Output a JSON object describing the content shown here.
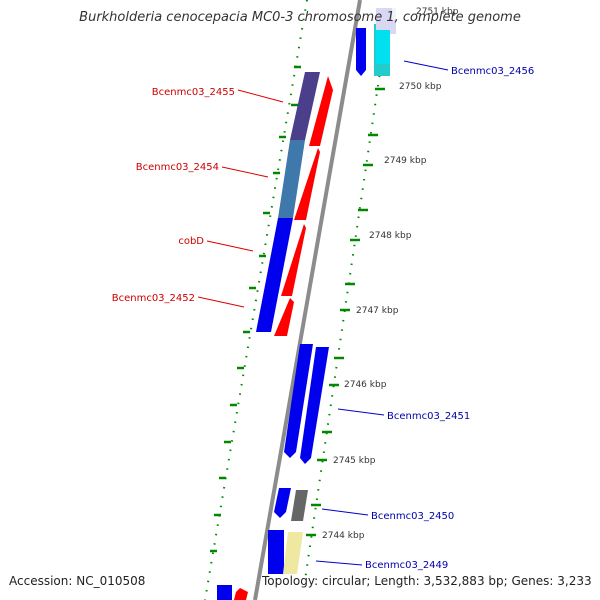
{
  "title": "Burkholderia cenocepacia MC0-3 chromosome 1, complete genome",
  "accession": "Accession: NC_010508",
  "topology": "Topology: circular; Length: 3,532,883 bp; Genes: 3,233",
  "colors": {
    "backbone": "#8c8c8c",
    "tick": "#008800",
    "ruler_text": "#333333",
    "label_left": "#cc0000",
    "label_right": "#0000aa",
    "leader_left": "#dd0000",
    "leader_right": "#0000cc",
    "blue": "#0000ee",
    "red": "#ff0000",
    "purple": "#4b3f8c",
    "steel": "#3f78aa",
    "cyan": "#22cccc",
    "gray": "#666666",
    "khaki": "#eee8a0"
  },
  "ruler": [
    "2751 kbp",
    "2750 kbp",
    "2749 kbp",
    "2748 kbp",
    "2747 kbp",
    "2746 kbp",
    "2745 kbp",
    "2744 kbp"
  ],
  "gene_labels_left": [
    "Bcenmc03_2455",
    "Bcenmc03_2454",
    "cobD",
    "Bcenmc03_2452"
  ],
  "gene_labels_right": [
    "Bcenmc03_2456",
    "Bcenmc03_2451",
    "Bcenmc03_2450",
    "Bcenmc03_2449"
  ]
}
